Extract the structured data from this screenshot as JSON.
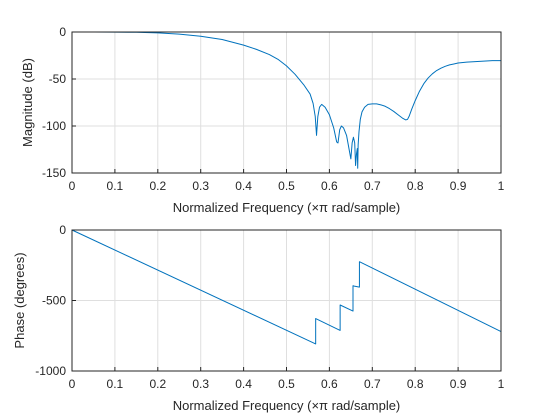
{
  "colors": {
    "line": "#0072BD",
    "axis": "#262626",
    "grid": "#DFDFDF",
    "background": "#ffffff"
  },
  "chart_data": [
    {
      "type": "line",
      "title": "",
      "xlabel": "Normalized Frequency  (×π rad/sample)",
      "ylabel": "Magnitude (dB)",
      "xlim": [
        0,
        1
      ],
      "ylim": [
        -150,
        0
      ],
      "xticks": [
        "0",
        "0.1",
        "0.2",
        "0.3",
        "0.4",
        "0.5",
        "0.6",
        "0.7",
        "0.8",
        "0.9",
        "1"
      ],
      "yticks": [
        "0",
        "-50",
        "-100",
        "-150"
      ],
      "grid": true,
      "series": [
        {
          "x": [
            0,
            0.05,
            0.1,
            0.15,
            0.2,
            0.25,
            0.3,
            0.35,
            0.4,
            0.43,
            0.46,
            0.48,
            0.5,
            0.52,
            0.54,
            0.555,
            0.562,
            0.567,
            0.57,
            0.573,
            0.577,
            0.582,
            0.59,
            0.6,
            0.61,
            0.617,
            0.62,
            0.624,
            0.628,
            0.633,
            0.64,
            0.646,
            0.65,
            0.653,
            0.656,
            0.659,
            0.661,
            0.663,
            0.665,
            0.666,
            0.667,
            0.669,
            0.672,
            0.676,
            0.682,
            0.69,
            0.7,
            0.71,
            0.72,
            0.73,
            0.74,
            0.75,
            0.76,
            0.77,
            0.778,
            0.782,
            0.786,
            0.792,
            0.8,
            0.81,
            0.82,
            0.83,
            0.84,
            0.85,
            0.86,
            0.87,
            0.88,
            0.89,
            0.9,
            0.92,
            0.94,
            0.96,
            0.98,
            1.0
          ],
          "y": [
            0,
            0,
            -0.1,
            -0.3,
            -0.9,
            -2.3,
            -4.5,
            -8,
            -14,
            -18.5,
            -24,
            -29,
            -36,
            -45,
            -56,
            -66,
            -76,
            -90,
            -110,
            -90,
            -80,
            -77,
            -80,
            -88,
            -102,
            -117,
            -118,
            -104,
            -100,
            -102,
            -110,
            -125,
            -135,
            -118,
            -112,
            -118,
            -142,
            -130,
            -124,
            -145,
            -120,
            -106,
            -93,
            -85,
            -80,
            -77,
            -76.5,
            -76.5,
            -77.5,
            -79,
            -81.5,
            -84.5,
            -88,
            -91.5,
            -93.5,
            -93,
            -89.5,
            -82,
            -73,
            -63,
            -55,
            -49,
            -44.5,
            -41,
            -38.5,
            -36.5,
            -35,
            -34,
            -33,
            -32,
            -31.5,
            -31,
            -30.5,
            -30.5
          ]
        }
      ]
    },
    {
      "type": "line",
      "title": "",
      "xlabel": "Normalized Frequency  (×π rad/sample)",
      "ylabel": "Phase (degrees)",
      "xlim": [
        0,
        1
      ],
      "ylim": [
        -1000,
        0
      ],
      "xticks": [
        "0",
        "0.1",
        "0.2",
        "0.3",
        "0.4",
        "0.5",
        "0.6",
        "0.7",
        "0.8",
        "0.9",
        "1"
      ],
      "yticks": [
        "0",
        "-500",
        "-1000"
      ],
      "grid": true,
      "series": [
        {
          "x": [
            0,
            0.568,
            0.568,
            0.625,
            0.625,
            0.655,
            0.655,
            0.658,
            0.658,
            0.67,
            0.67,
            1.0
          ],
          "y": [
            0,
            -808,
            -628,
            -712,
            -532,
            -575,
            -395,
            -398,
            -398,
            -405,
            -225,
            -720
          ]
        }
      ]
    }
  ]
}
